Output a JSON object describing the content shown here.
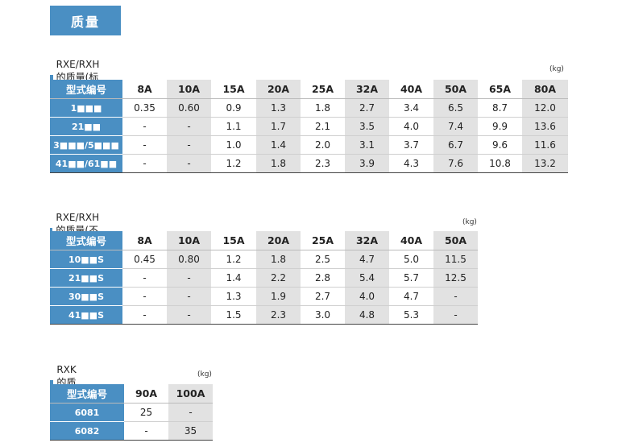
{
  "page_title": "质量",
  "tables": [
    {
      "title": "RXE/RXH的质量(标准规格)",
      "unit": "(kg)",
      "headers": [
        "型式编号",
        "8A",
        "10A",
        "15A",
        "20A",
        "25A",
        "32A",
        "40A",
        "50A",
        "65A",
        "80A"
      ],
      "rows": [
        [
          "1■■■",
          "0.35",
          "0.60",
          "0.9",
          "1.3",
          "1.8",
          "2.7",
          "3.4",
          "6.5",
          "8.7",
          "12.0"
        ],
        [
          "21■■",
          "-",
          "-",
          "1.1",
          "1.7",
          "2.1",
          "3.5",
          "4.0",
          "7.4",
          "9.9",
          "13.6"
        ],
        [
          "3■■■/5■■■",
          "-",
          "-",
          "1.0",
          "1.4",
          "2.0",
          "3.1",
          "3.7",
          "6.7",
          "9.6",
          "11.6"
        ],
        [
          "41■■/61■■",
          "-",
          "-",
          "1.2",
          "1.8",
          "2.3",
          "3.9",
          "4.3",
          "7.6",
          "10.8",
          "13.2"
        ]
      ]
    },
    {
      "title": "RXE/RXH的质量(不锈钢规格)",
      "unit": "(kg)",
      "headers": [
        "型式编号",
        "8A",
        "10A",
        "15A",
        "20A",
        "25A",
        "32A",
        "40A",
        "50A"
      ],
      "rows": [
        [
          "10■■S",
          "0.45",
          "0.80",
          "1.2",
          "1.8",
          "2.5",
          "4.7",
          "5.0",
          "11.5"
        ],
        [
          "21■■S",
          "-",
          "-",
          "1.4",
          "2.2",
          "2.8",
          "5.4",
          "5.7",
          "12.5"
        ],
        [
          "30■■S",
          "-",
          "-",
          "1.3",
          "1.9",
          "2.7",
          "4.0",
          "4.7",
          "-"
        ],
        [
          "41■■S",
          "-",
          "-",
          "1.5",
          "2.3",
          "3.0",
          "4.8",
          "5.3",
          "-"
        ]
      ]
    },
    {
      "title": "RXK的质量",
      "unit": "(kg)",
      "headers": [
        "型式编号",
        "90A",
        "100A"
      ],
      "rows": [
        [
          "6081",
          "25",
          "-"
        ],
        [
          "6082",
          "-",
          "35"
        ]
      ]
    }
  ]
}
